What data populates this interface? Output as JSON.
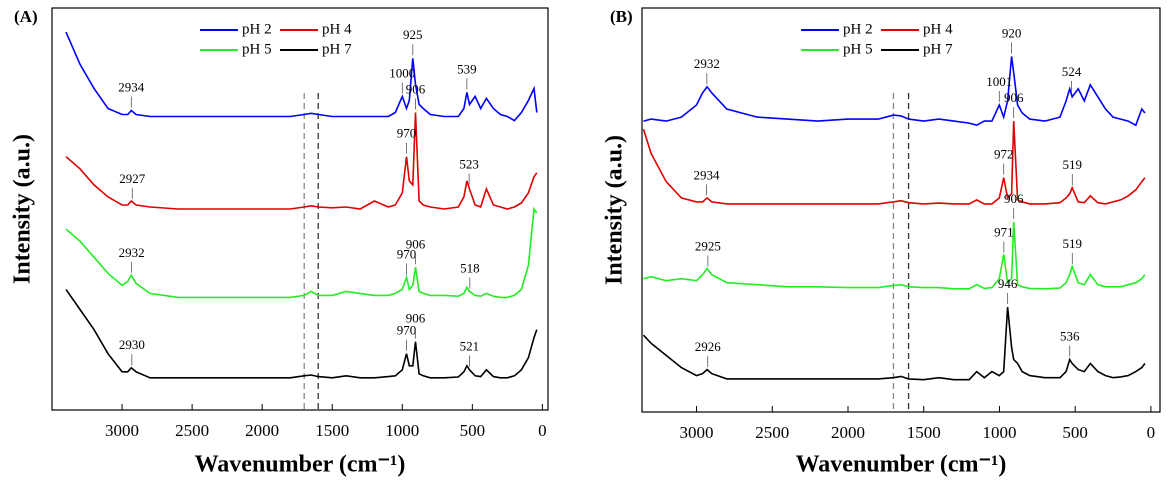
{
  "chart_data": [
    {
      "type": "line",
      "panel_label": "(A)",
      "xlabel": "Wavenumber (cm⁻¹)",
      "ylabel": "Intensity (a.u.)",
      "xlim": [
        3500,
        -40
      ],
      "xticks": [
        3000,
        2500,
        2000,
        1500,
        1000,
        500,
        0
      ],
      "ylim": [
        0,
        100
      ],
      "legend": "upper center",
      "vlines": [
        1700,
        1600
      ],
      "x": [
        3400,
        3300,
        3200,
        3100,
        3000,
        2960,
        2934,
        2900,
        2800,
        2600,
        2400,
        2200,
        2000,
        1800,
        1700,
        1650,
        1600,
        1500,
        1400,
        1300,
        1200,
        1100,
        1050,
        1000,
        970,
        950,
        925,
        906,
        880,
        850,
        800,
        700,
        600,
        560,
        539,
        520,
        480,
        440,
        400,
        350,
        300,
        250,
        200,
        150,
        100,
        60,
        40
      ],
      "series": [
        {
          "name": "pH 2",
          "color": "#0000ff",
          "peaks": [
            2934,
            1000,
            925,
            539
          ],
          "values": [
            94,
            86,
            80,
            75,
            73.5,
            73.5,
            74.5,
            73.5,
            73,
            73,
            73,
            73,
            73,
            73,
            73.5,
            73.8,
            73.5,
            73,
            73,
            73,
            73,
            73,
            74,
            78,
            75,
            77,
            87.5,
            81,
            76,
            75,
            73.5,
            73,
            73,
            75,
            79,
            76,
            78,
            75,
            77.5,
            75,
            73.5,
            73,
            72,
            74,
            77,
            80,
            74
          ]
        },
        {
          "name": "pH 4",
          "color": "#e00000",
          "peaks": [
            2927,
            970,
            906,
            523
          ],
          "values": [
            63,
            60,
            56,
            53,
            51,
            51,
            52,
            51,
            50.5,
            50,
            50,
            50,
            50,
            50,
            50.5,
            50.8,
            50.5,
            50.3,
            50.5,
            50,
            52,
            50.5,
            51,
            54,
            63,
            57,
            56,
            74,
            52,
            51,
            50.5,
            50,
            50.5,
            53,
            57,
            55,
            51,
            50.5,
            55,
            51,
            50.5,
            50,
            50.5,
            51.5,
            54,
            58,
            59
          ]
        },
        {
          "name": "pH 5",
          "color": "#22ee22",
          "peaks": [
            2932,
            970,
            906,
            518
          ],
          "values": [
            45,
            42,
            38,
            34,
            31,
            32,
            33.5,
            31.5,
            29,
            28,
            28,
            28,
            28,
            28,
            28.5,
            29.5,
            28.5,
            28.5,
            29.5,
            29,
            28.5,
            28.5,
            29,
            30,
            33,
            30,
            31,
            35.5,
            29.5,
            29,
            28.5,
            28.5,
            28.3,
            29,
            30.5,
            29.5,
            28.5,
            28.3,
            29,
            28.3,
            28,
            28,
            28.5,
            30,
            36,
            50,
            49
          ]
        },
        {
          "name": "pH 7",
          "color": "#000000",
          "peaks": [
            2930,
            970,
            906,
            521
          ],
          "values": [
            30,
            25,
            20,
            14,
            9.5,
            9.5,
            10.5,
            9.5,
            8,
            8,
            8,
            8,
            8,
            8,
            8.5,
            8.7,
            8.3,
            8,
            8.5,
            8,
            8,
            8.3,
            8.5,
            10,
            14,
            11,
            11,
            17,
            9,
            8.5,
            8,
            8,
            8.2,
            9.5,
            11,
            10,
            8.5,
            8.3,
            10,
            8.3,
            8,
            8,
            8.5,
            10,
            13,
            18,
            20
          ]
        }
      ]
    },
    {
      "type": "line",
      "panel_label": "(B)",
      "xlabel": "Wavenumber (cm⁻¹)",
      "ylabel": "Intensity (a.u.)",
      "xlim": [
        3360,
        -60
      ],
      "xticks": [
        3000,
        2500,
        2000,
        1500,
        1000,
        500,
        0
      ],
      "ylim": [
        0,
        100
      ],
      "legend": "upper center",
      "vlines": [
        1700,
        1600
      ],
      "x": [
        3350,
        3300,
        3200,
        3100,
        3000,
        2960,
        2930,
        2900,
        2800,
        2600,
        2400,
        2200,
        2000,
        1800,
        1700,
        1650,
        1600,
        1500,
        1400,
        1300,
        1200,
        1150,
        1100,
        1050,
        1001,
        972,
        946,
        920,
        906,
        880,
        850,
        800,
        700,
        600,
        560,
        536,
        520,
        480,
        440,
        400,
        350,
        300,
        250,
        200,
        150,
        100,
        60,
        40
      ],
      "series": [
        {
          "name": "pH 2",
          "color": "#0000ff",
          "peaks": [
            2932,
            1001,
            920,
            524
          ],
          "values": [
            72,
            72.5,
            72,
            73,
            76,
            79,
            80.5,
            79,
            75,
            73,
            72.5,
            72,
            72.5,
            72.5,
            73.5,
            73.3,
            72.5,
            72,
            72.5,
            72,
            71.5,
            71,
            72,
            72,
            76,
            73,
            77,
            88,
            84,
            76,
            74,
            72.5,
            72,
            73,
            77,
            80,
            78,
            80,
            77,
            81,
            78,
            75,
            73,
            72.5,
            72,
            71,
            75,
            74
          ]
        },
        {
          "name": "pH 4",
          "color": "#e00000",
          "peaks": [
            2934,
            972,
            906,
            519
          ],
          "values": [
            70,
            64,
            57,
            53,
            52,
            52,
            53,
            52,
            51.5,
            51.5,
            51.5,
            51.5,
            51.5,
            51.5,
            52,
            52.3,
            51.8,
            51.5,
            51.7,
            51.5,
            51.5,
            52.5,
            51.5,
            51.5,
            53,
            58,
            53,
            54,
            72,
            52.5,
            52,
            51.5,
            51.5,
            51.8,
            53,
            54,
            55.5,
            52,
            51.8,
            53.5,
            51.8,
            51.5,
            52,
            52.5,
            53.5,
            55,
            57,
            58
          ]
        },
        {
          "name": "pH 5",
          "color": "#22ee22",
          "peaks": [
            2925,
            971,
            906,
            519
          ],
          "values": [
            33,
            33.5,
            32.5,
            33,
            32.5,
            34,
            35.5,
            34,
            32,
            31.5,
            31,
            31,
            30.8,
            30.8,
            31.3,
            31.5,
            31,
            30.8,
            30.8,
            30.5,
            30.5,
            31.5,
            30.6,
            30.8,
            33,
            39,
            32,
            33,
            47,
            31.5,
            31,
            30.6,
            30.5,
            30.7,
            32,
            34,
            36,
            32,
            31.5,
            34,
            31.5,
            31,
            31,
            31,
            31.5,
            32,
            33,
            34
          ]
        },
        {
          "name": "pH 7",
          "color": "#000000",
          "peaks": [
            2926,
            946,
            536
          ],
          "values": [
            19,
            17,
            14,
            11,
            9,
            9.5,
            10.5,
            9.5,
            8.2,
            8.2,
            8.2,
            8.2,
            8.2,
            8.2,
            8.5,
            8.8,
            8.2,
            8,
            8.5,
            8,
            8,
            10,
            8.5,
            10,
            9,
            10,
            26,
            16,
            13,
            12,
            10,
            9,
            8.5,
            8.5,
            10,
            13,
            12,
            10.5,
            10,
            12,
            10,
            9,
            8.5,
            8.7,
            9,
            10,
            11,
            12
          ]
        }
      ]
    }
  ]
}
